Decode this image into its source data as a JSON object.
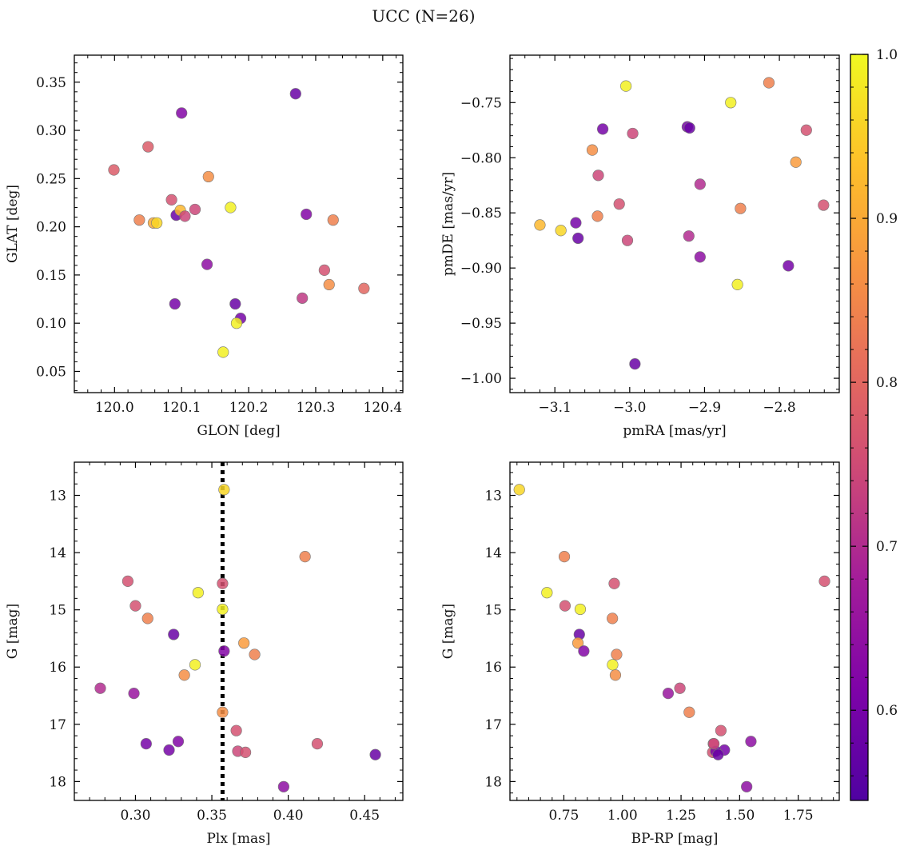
{
  "title": "UCC (N=26)",
  "colorbar": {
    "range": [
      0.545,
      1.0
    ],
    "ticks": [
      0.6,
      0.7,
      0.8,
      0.9,
      1.0
    ],
    "tick_labels": [
      "0.6",
      "0.7",
      "0.8",
      "0.9",
      "1.0"
    ],
    "colormap": "plasma"
  },
  "chart_data": [
    {
      "type": "scatter",
      "xlabel": "GLON [deg]",
      "ylabel": "GLAT [deg]",
      "xlim": [
        119.94,
        120.43
      ],
      "ylim": [
        0.028,
        0.378
      ],
      "xticks": [
        120.0,
        120.1,
        120.2,
        120.3,
        120.4
      ],
      "xtick_labels": [
        "120.0",
        "120.1",
        "120.2",
        "120.3",
        "120.4"
      ],
      "yticks": [
        0.05,
        0.1,
        0.15,
        0.2,
        0.25,
        0.3,
        0.35
      ],
      "ytick_labels": [
        "0.05",
        "0.10",
        "0.15",
        "0.20",
        "0.25",
        "0.30",
        "0.35"
      ],
      "x": [
        120.27,
        120.1,
        120.05,
        119.999,
        120.14,
        120.085,
        120.12,
        120.037,
        120.058,
        120.063,
        120.092,
        120.098,
        120.105,
        120.173,
        120.286,
        120.326,
        120.138,
        120.313,
        120.32,
        120.372,
        120.28,
        120.09,
        120.18,
        120.188,
        120.182,
        120.162
      ],
      "y": [
        0.338,
        0.318,
        0.283,
        0.259,
        0.252,
        0.228,
        0.218,
        0.207,
        0.204,
        0.204,
        0.212,
        0.217,
        0.211,
        0.22,
        0.213,
        0.207,
        0.161,
        0.155,
        0.14,
        0.136,
        0.126,
        0.12,
        0.12,
        0.105,
        0.1,
        0.07
      ],
      "c": [
        0.58,
        0.62,
        0.78,
        0.78,
        0.86,
        0.76,
        0.74,
        0.84,
        0.9,
        0.96,
        0.58,
        0.92,
        0.74,
        0.99,
        0.62,
        0.84,
        0.64,
        0.76,
        0.86,
        0.8,
        0.72,
        0.6,
        0.58,
        0.6,
        0.99,
        0.99
      ]
    },
    {
      "type": "scatter",
      "xlabel": "pmRA [mas/yr]",
      "ylabel": "pmDE [mas/yr]",
      "xlim": [
        -3.16,
        -2.72
      ],
      "ylim": [
        -1.013,
        -0.707
      ],
      "xticks": [
        -3.1,
        -3.0,
        -2.9,
        -2.8
      ],
      "xtick_labels": [
        "−3.1",
        "−3.0",
        "−2.9",
        "−2.8"
      ],
      "yticks": [
        -1.0,
        -0.95,
        -0.9,
        -0.85,
        -0.8,
        -0.75
      ],
      "ytick_labels": [
        "−1.00",
        "−0.95",
        "−0.90",
        "−0.85",
        "−0.80",
        "−0.75"
      ],
      "x": [
        -2.814,
        -3.005,
        -2.865,
        -2.764,
        -3.036,
        -2.996,
        -2.923,
        -2.92,
        -3.05,
        -2.778,
        -3.042,
        -2.906,
        -3.014,
        -3.12,
        -3.072,
        -3.092,
        -3.043,
        -2.852,
        -2.741,
        -3.069,
        -3.003,
        -2.921,
        -2.906,
        -2.788,
        -2.856,
        -2.993
      ],
      "y": [
        -0.732,
        -0.735,
        -0.75,
        -0.775,
        -0.774,
        -0.778,
        -0.772,
        -0.773,
        -0.793,
        -0.804,
        -0.816,
        -0.824,
        -0.842,
        -0.861,
        -0.859,
        -0.866,
        -0.853,
        -0.846,
        -0.843,
        -0.873,
        -0.875,
        -0.871,
        -0.89,
        -0.898,
        -0.915,
        -0.987
      ],
      "c": [
        0.84,
        0.99,
        0.99,
        0.76,
        0.6,
        0.74,
        0.6,
        0.58,
        0.86,
        0.88,
        0.74,
        0.7,
        0.76,
        0.92,
        0.6,
        0.96,
        0.84,
        0.84,
        0.76,
        0.58,
        0.74,
        0.7,
        0.64,
        0.6,
        0.99,
        0.58
      ]
    },
    {
      "type": "scatter",
      "xlabel": "Plx [mas]",
      "ylabel": "G [mag]",
      "xlim": [
        0.26,
        0.475
      ],
      "ylim": [
        18.33,
        12.42
      ],
      "y_inverted": true,
      "vline": {
        "x": 0.357,
        "style": "dotted"
      },
      "xticks": [
        0.3,
        0.35,
        0.4,
        0.45
      ],
      "xtick_labels": [
        "0.30",
        "0.35",
        "0.40",
        "0.45"
      ],
      "yticks": [
        13,
        14,
        15,
        16,
        17,
        18
      ],
      "ytick_labels": [
        "13",
        "14",
        "15",
        "16",
        "17",
        "18"
      ],
      "x": [
        0.358,
        0.411,
        0.295,
        0.357,
        0.341,
        0.3,
        0.357,
        0.308,
        0.371,
        0.325,
        0.358,
        0.378,
        0.339,
        0.332,
        0.277,
        0.299,
        0.357,
        0.366,
        0.307,
        0.328,
        0.322,
        0.367,
        0.372,
        0.419,
        0.457,
        0.397
      ],
      "y": [
        12.9,
        14.07,
        14.5,
        14.54,
        14.7,
        14.93,
        14.99,
        15.15,
        15.58,
        15.43,
        15.72,
        15.78,
        15.96,
        16.14,
        16.37,
        16.46,
        16.79,
        17.11,
        17.34,
        17.3,
        17.45,
        17.47,
        17.49,
        17.34,
        17.53,
        18.09
      ],
      "c": [
        0.96,
        0.84,
        0.76,
        0.76,
        0.99,
        0.76,
        0.99,
        0.84,
        0.88,
        0.58,
        0.62,
        0.84,
        0.99,
        0.86,
        0.7,
        0.66,
        0.86,
        0.76,
        0.6,
        0.62,
        0.6,
        0.74,
        0.76,
        0.76,
        0.58,
        0.64
      ]
    },
    {
      "type": "scatter",
      "xlabel": "BP-RP [mag]",
      "ylabel": "G [mag]",
      "xlim": [
        0.52,
        1.925
      ],
      "ylim": [
        18.33,
        12.42
      ],
      "y_inverted": true,
      "xticks": [
        0.75,
        1.0,
        1.25,
        1.5,
        1.75
      ],
      "xtick_labels": [
        "0.75",
        "1.00",
        "1.25",
        "1.50",
        "1.75"
      ],
      "yticks": [
        13,
        14,
        15,
        16,
        17,
        18
      ],
      "ytick_labels": [
        "13",
        "14",
        "15",
        "16",
        "17",
        "18"
      ],
      "x": [
        0.56,
        0.752,
        1.862,
        0.678,
        0.755,
        0.965,
        0.82,
        0.816,
        0.957,
        0.81,
        0.835,
        0.975,
        0.958,
        0.97,
        1.245,
        1.195,
        1.285,
        1.42,
        1.548,
        1.388,
        1.435,
        1.385,
        1.398,
        1.39,
        1.408,
        1.53
      ],
      "y": [
        12.9,
        14.07,
        14.5,
        14.7,
        14.93,
        14.54,
        14.99,
        15.43,
        15.15,
        15.58,
        15.72,
        15.78,
        15.96,
        16.14,
        16.37,
        16.46,
        16.79,
        17.11,
        17.3,
        17.34,
        17.45,
        17.49,
        17.47,
        17.34,
        17.53,
        18.09
      ],
      "c": [
        0.96,
        0.84,
        0.76,
        0.99,
        0.76,
        0.76,
        0.99,
        0.58,
        0.84,
        0.88,
        0.62,
        0.84,
        0.99,
        0.86,
        0.74,
        0.66,
        0.84,
        0.76,
        0.64,
        0.76,
        0.6,
        0.76,
        0.6,
        0.74,
        0.58,
        0.64
      ]
    }
  ]
}
